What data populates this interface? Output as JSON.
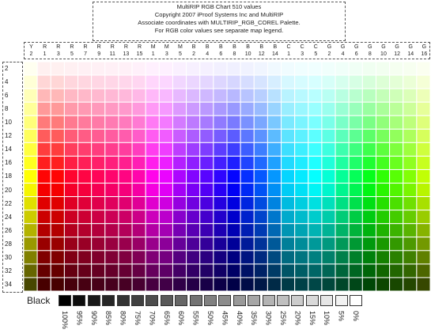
{
  "title": {
    "lines": [
      "MultiRIP RGB Chart 510 values",
      "Copyright 2007 iProof Systems Inc and MultiRIP",
      "Associate coordinates with MULTIRIP_RGB_COREL Palette.",
      "For RGB color values see separate map legend."
    ]
  },
  "column_labels": [
    "Y 2",
    "R 1",
    "R 3",
    "R 5",
    "R 7",
    "R 9",
    "R 11",
    "R 13",
    "R 15",
    "M 1",
    "M 3",
    "M 5",
    "B 2",
    "B 4",
    "B 6",
    "B 8",
    "B 10",
    "B 12",
    "B 14",
    "C 1",
    "C 3",
    "C 5",
    "G 2",
    "G 4",
    "G 6",
    "G 8",
    "G 10",
    "G 12",
    "G 14",
    "G 16"
  ],
  "row_labels": [
    "2",
    "4",
    "6",
    "8",
    "10",
    "12",
    "14",
    "16",
    "18",
    "20",
    "22",
    "24",
    "26",
    "28",
    "30",
    "32",
    "34"
  ],
  "grid": {
    "hues": [
      60,
      0,
      0,
      350,
      345,
      340,
      335,
      330,
      320,
      305,
      295,
      280,
      270,
      260,
      250,
      240,
      230,
      220,
      205,
      190,
      185,
      180,
      170,
      155,
      140,
      125,
      110,
      100,
      90,
      75
    ],
    "lightness": [
      97,
      92,
      86,
      80,
      74,
      68,
      62,
      56,
      51,
      48,
      44,
      40,
      35,
      30,
      25,
      20,
      14
    ],
    "line_color": "#ffffff"
  },
  "black_strip": {
    "label": "Black",
    "percent_labels": [
      "100%",
      "95%",
      "90%",
      "85%",
      "80%",
      "75%",
      "70%",
      "65%",
      "60%",
      "55%",
      "50%",
      "45%",
      "40%",
      "35%",
      "30%",
      "25%",
      "20%",
      "15%",
      "10%",
      "5%",
      "0%"
    ]
  }
}
